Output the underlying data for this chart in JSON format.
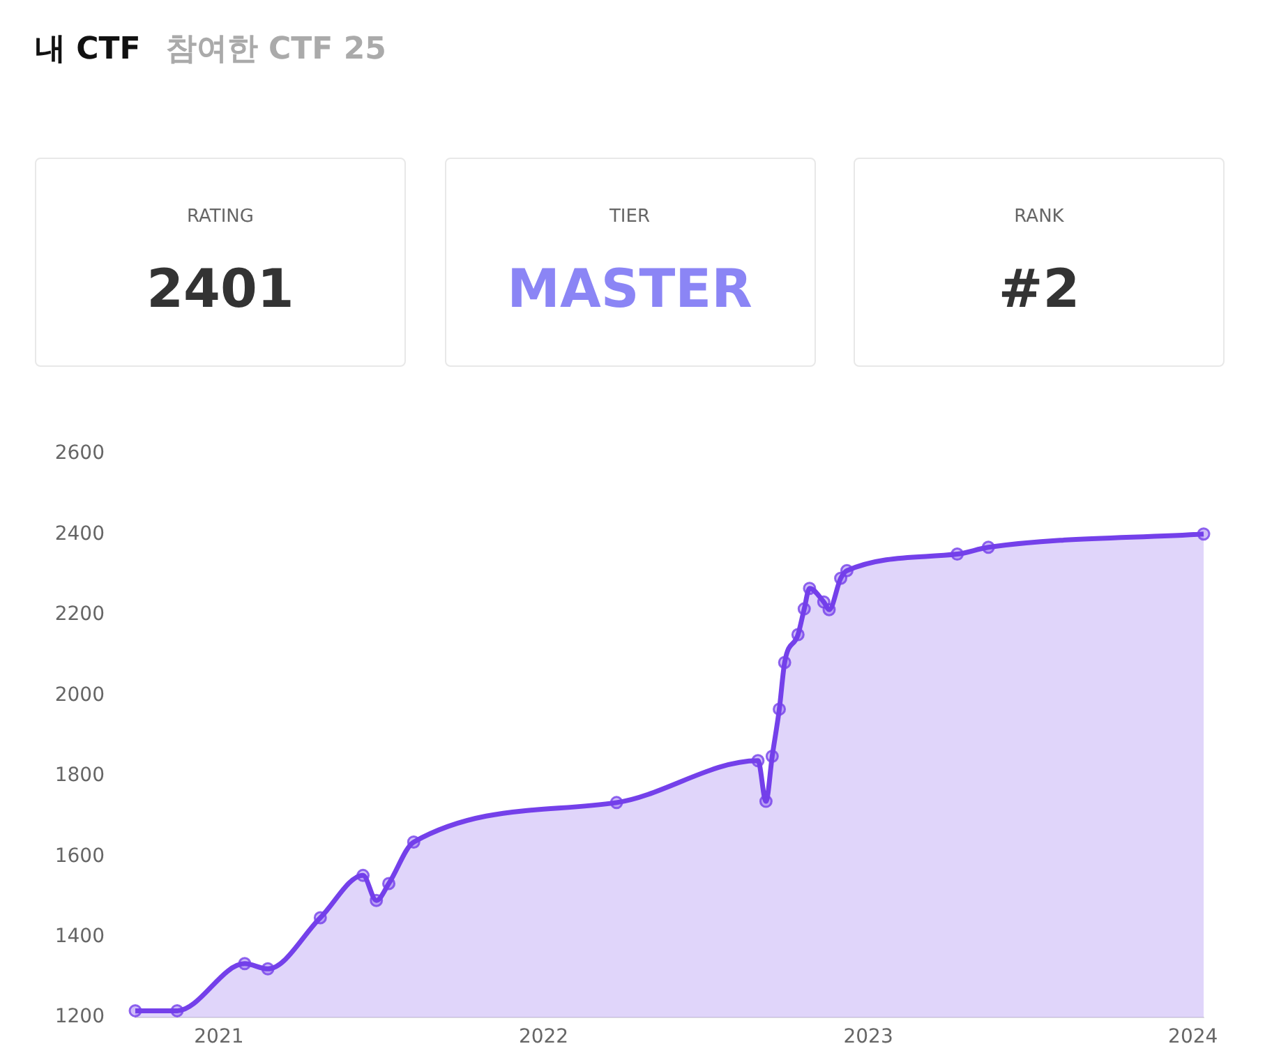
{
  "chart_data": [
    {
      "type": "other",
      "annotations": [
        "내 CTF",
        "참여한 CTF 25"
      ]
    },
    {
      "type": "other",
      "title": "RATING",
      "annotations": [
        "2401"
      ]
    },
    {
      "type": "other",
      "title": "TIER",
      "annotations": [
        "MASTER"
      ]
    },
    {
      "type": "other",
      "title": "RANK",
      "annotations": [
        "#2"
      ]
    },
    {
      "type": "area",
      "x": [
        "2020-09-29",
        "2020-11-15",
        "2021-01-30",
        "2021-02-25",
        "2021-04-25",
        "2021-06-12",
        "2021-06-27",
        "2021-07-11",
        "2021-08-08",
        "2022-03-24",
        "2022-08-30",
        "2022-09-08",
        "2022-09-15",
        "2022-09-23",
        "2022-09-29",
        "2022-10-14",
        "2022-10-21",
        "2022-10-27",
        "2022-11-12",
        "2022-11-18",
        "2022-12-01",
        "2022-12-08",
        "2023-04-11",
        "2023-05-16",
        "2024-01-13"
      ],
      "series": [
        {
          "color": "#7440ea",
          "values": [
            1217,
            1217,
            1334,
            1321,
            1448,
            1553,
            1491,
            1533,
            1636,
            1734,
            1838,
            1737,
            1849,
            1966,
            2082,
            2151,
            2215,
            2266,
            2232,
            2213,
            2291,
            2310,
            2351,
            2368,
            2401
          ]
        }
      ],
      "xlim": [
        "2020-09-29",
        "2024-01-13"
      ],
      "xticks": [
        "2021",
        "2022",
        "2023",
        "2024"
      ],
      "ylim": [
        1200,
        2600
      ],
      "yticks": [
        1200,
        1400,
        1600,
        1800,
        2000,
        2200,
        2400,
        2600
      ],
      "grid": false,
      "legend": false,
      "marker": "circle"
    }
  ]
}
